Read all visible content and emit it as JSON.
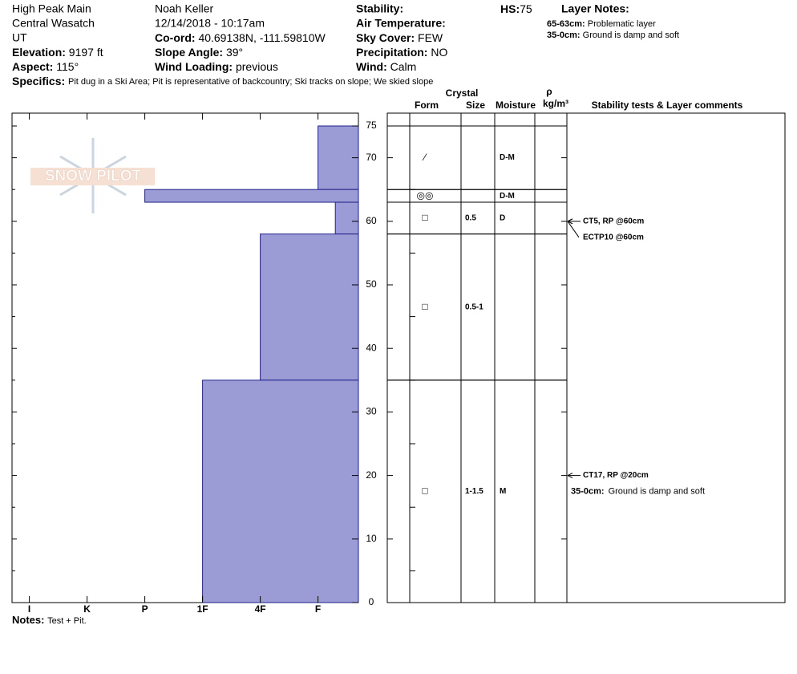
{
  "header": {
    "site": "High Peak Main",
    "range": "Central Wasatch",
    "state": "UT",
    "elevation": {
      "label": "Elevation:",
      "value": "9197 ft"
    },
    "aspect": {
      "label": "Aspect:",
      "value": "115°"
    },
    "observer": "Noah Keller",
    "datetime": "12/14/2018 - 10:17am",
    "coord": {
      "label": "Co-ord:",
      "value": "40.69138N, -111.59810W"
    },
    "slope": {
      "label": "Slope Angle:",
      "value": "39°"
    },
    "wind_loading": {
      "label": "Wind Loading:",
      "value": "previous"
    },
    "stability": {
      "label": "Stability:"
    },
    "air_temp": {
      "label": "Air Temperature:"
    },
    "sky": {
      "label": "Sky Cover:",
      "value": "FEW"
    },
    "precip": {
      "label": "Precipitation:",
      "value": "NO"
    },
    "wind": {
      "label": "Wind:",
      "value": "Calm"
    },
    "hs": {
      "label": "HS:",
      "value": 75
    },
    "layer_notes": {
      "label": "Layer Notes:",
      "items": [
        {
          "range": "65-63cm:",
          "text": "Problematic layer"
        },
        {
          "range": "35-0cm:",
          "text": "Ground is damp and soft"
        }
      ]
    },
    "specifics": {
      "label": "Specifics:",
      "value": "Pit dug in a Ski Area; Pit is representative of backcountry; Ski tracks on slope; We skied slope"
    }
  },
  "logo": "SNOW PILOT",
  "chart_data": {
    "type": "hardness-profile",
    "ylim": [
      0,
      75
    ],
    "yticks": [
      0,
      10,
      20,
      30,
      40,
      50,
      60,
      70,
      75
    ],
    "yminor": [
      5,
      15,
      25,
      35,
      45,
      55,
      65
    ],
    "xlim": [
      0.3,
      6.3
    ],
    "xticks": [
      {
        "value": 6,
        "label": "I"
      },
      {
        "value": 5,
        "label": "K"
      },
      {
        "value": 4,
        "label": "P"
      },
      {
        "value": 3,
        "label": "1F"
      },
      {
        "value": 2,
        "label": "4F"
      },
      {
        "value": 1,
        "label": "F"
      }
    ],
    "color": "#9b9bd6",
    "layers": [
      {
        "top": 75,
        "bottom": 65,
        "hardness": 1,
        "form": "⁄",
        "moisture": "D-M"
      },
      {
        "top": 65,
        "bottom": 63,
        "hardness": 4,
        "form": "◎◎",
        "moisture": "D-M"
      },
      {
        "top": 63,
        "bottom": 58,
        "hardness": 0.7,
        "form": "□",
        "size": "0.5",
        "moisture": "D"
      },
      {
        "top": 58,
        "bottom": 35,
        "hardness": 2,
        "form": "□",
        "size": "0.5-1"
      },
      {
        "top": 35,
        "bottom": 0,
        "hardness": 3,
        "form": "□",
        "size": "1-1.5",
        "moisture": "M"
      }
    ],
    "columns": {
      "crystal": "Crystal",
      "form": "Form",
      "size": "Size",
      "moisture": "Moisture",
      "rho": "ρ",
      "density": "kg/m³",
      "tests": "Stability tests & Layer comments"
    },
    "tests": [
      {
        "label": "CT5, RP @60cm",
        "depth": 60
      },
      {
        "label": "ECTP10 @60cm",
        "depth": 60
      },
      {
        "label": "CT17, RP @20cm",
        "depth": 20
      }
    ],
    "comments": [
      {
        "range": "35-0cm:",
        "text": "Ground is damp and soft",
        "top": 35,
        "bottom": 0
      }
    ],
    "notes": {
      "label": "Notes:",
      "value": "Test + Pit."
    }
  }
}
